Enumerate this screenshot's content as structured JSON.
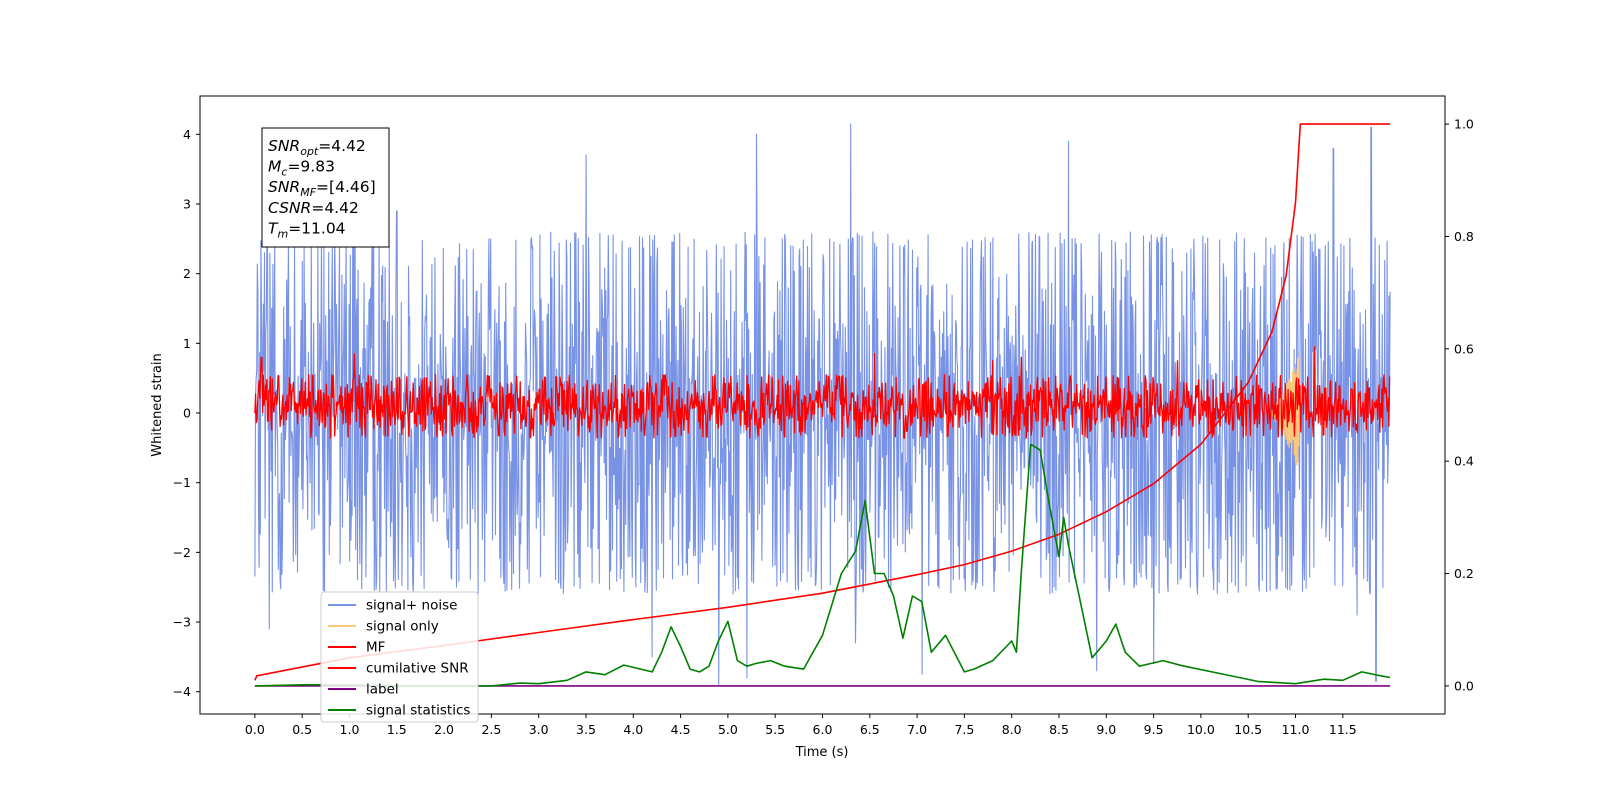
{
  "chart_data": {
    "type": "line",
    "xlabel": "Time (s)",
    "ylabel": "Whitened strain",
    "xlim": [
      -0.58,
      12.58
    ],
    "ylim": [
      -4.32,
      4.55
    ],
    "y2lim": [
      -0.05,
      1.05
    ],
    "xticks": [
      0.0,
      0.5,
      1.0,
      1.5,
      2.0,
      2.5,
      3.0,
      3.5,
      4.0,
      4.5,
      5.0,
      5.5,
      6.0,
      6.5,
      7.0,
      7.5,
      8.0,
      8.5,
      9.0,
      9.5,
      10.0,
      10.5,
      11.0,
      11.5
    ],
    "xtick_labels": [
      "0.0",
      "0.5",
      "1.0",
      "1.5",
      "2.0",
      "2.5",
      "3.0",
      "3.5",
      "4.0",
      "4.5",
      "5.0",
      "5.5",
      "6.0",
      "6.5",
      "7.0",
      "7.5",
      "8.0",
      "8.5",
      "9.0",
      "9.5",
      "10.0",
      "10.5",
      "11.0",
      "11.5"
    ],
    "yticks": [
      4,
      3,
      2,
      1,
      0,
      -1,
      -2,
      -3,
      -4
    ],
    "ytick_labels": [
      "4",
      "3",
      "2",
      "1",
      "0",
      "−1",
      "−2",
      "−3",
      "−4"
    ],
    "y2ticks": [
      1.0,
      0.8,
      0.6,
      0.4,
      0.2,
      0.0
    ],
    "y2tick_labels": [
      "1.0",
      "0.8",
      "0.6",
      "0.4",
      "0.2",
      "0.0"
    ],
    "grid": false,
    "legend_position": "lower-left",
    "info_box": {
      "lines": [
        {
          "main": "SNR",
          "sub": "opt",
          "rest": "=4.42"
        },
        {
          "main": "M",
          "sub": "c",
          "rest": "=9.83"
        },
        {
          "main": "SNR",
          "sub": "MF",
          "rest": "=[4.46]"
        },
        {
          "main": "CSNR",
          "sub": "",
          "rest": "=4.42"
        },
        {
          "main": "T",
          "sub": "m",
          "rest": "=11.04"
        }
      ]
    },
    "series": [
      {
        "name": "signal+ noise",
        "color": "#7893e6",
        "axis": "left",
        "style": "dense noise",
        "x_range": [
          0.0,
          12.0
        ],
        "typical_envelope": [
          -2.6,
          2.6
        ],
        "peaks": [
          [
            0.1,
            2.3
          ],
          [
            0.15,
            -3.1
          ],
          [
            1.5,
            2.9
          ],
          [
            3.5,
            3.7
          ],
          [
            4.2,
            -3.5
          ],
          [
            4.9,
            -3.9
          ],
          [
            5.3,
            4.0
          ],
          [
            5.2,
            -3.8
          ],
          [
            6.3,
            4.15
          ],
          [
            6.35,
            -3.3
          ],
          [
            7.05,
            -3.75
          ],
          [
            8.6,
            3.9
          ],
          [
            8.9,
            -3.7
          ],
          [
            9.5,
            -3.6
          ],
          [
            11.4,
            3.8
          ],
          [
            11.65,
            -2.9
          ],
          [
            11.8,
            4.1
          ],
          [
            11.85,
            -3.85
          ]
        ]
      },
      {
        "name": "signal only",
        "color": "#f9c77e",
        "axis": "left",
        "style": "chirp",
        "x_range": [
          10.7,
          11.04
        ],
        "peak_amplitude": 0.9
      },
      {
        "name": "MF",
        "color": "#ff0000",
        "axis": "left",
        "style": "noise",
        "x_range": [
          0.0,
          12.0
        ],
        "typical_envelope": [
          -0.36,
          0.55
        ],
        "peaks": [
          [
            0.07,
            0.8
          ],
          [
            1.05,
            0.85
          ],
          [
            6.55,
            0.85
          ],
          [
            7.8,
            0.75
          ],
          [
            8.1,
            0.8
          ],
          [
            9.75,
            0.75
          ],
          [
            11.2,
            0.95
          ]
        ]
      },
      {
        "name": "cumilative SNR",
        "color": "#ff0000",
        "axis": "right",
        "points": [
          [
            0.0,
            0.01
          ],
          [
            0.02,
            0.018
          ],
          [
            1.0,
            0.05
          ],
          [
            2.0,
            0.072
          ],
          [
            3.0,
            0.095
          ],
          [
            4.0,
            0.118
          ],
          [
            5.0,
            0.14
          ],
          [
            6.0,
            0.165
          ],
          [
            7.0,
            0.198
          ],
          [
            7.5,
            0.216
          ],
          [
            8.0,
            0.24
          ],
          [
            8.5,
            0.27
          ],
          [
            9.0,
            0.31
          ],
          [
            9.5,
            0.36
          ],
          [
            10.0,
            0.43
          ],
          [
            10.5,
            0.54
          ],
          [
            10.75,
            0.63
          ],
          [
            10.9,
            0.73
          ],
          [
            11.0,
            0.86
          ],
          [
            11.05,
            1.0
          ],
          [
            12.0,
            1.0
          ]
        ]
      },
      {
        "name": "label",
        "color": "#800080",
        "axis": "right",
        "points": [
          [
            0.0,
            0.0
          ],
          [
            12.0,
            0.0
          ]
        ]
      },
      {
        "name": "signal statistics",
        "color": "#008000",
        "axis": "right",
        "points": [
          [
            0.0,
            0.0
          ],
          [
            0.5,
            0.002
          ],
          [
            1.0,
            0.002
          ],
          [
            1.5,
            0.0
          ],
          [
            2.0,
            0.0
          ],
          [
            2.5,
            0.0
          ],
          [
            2.8,
            0.005
          ],
          [
            3.0,
            0.004
          ],
          [
            3.3,
            0.01
          ],
          [
            3.5,
            0.025
          ],
          [
            3.7,
            0.02
          ],
          [
            3.9,
            0.037
          ],
          [
            4.0,
            0.033
          ],
          [
            4.2,
            0.025
          ],
          [
            4.3,
            0.06
          ],
          [
            4.4,
            0.105
          ],
          [
            4.5,
            0.07
          ],
          [
            4.6,
            0.03
          ],
          [
            4.7,
            0.025
          ],
          [
            4.8,
            0.035
          ],
          [
            4.9,
            0.08
          ],
          [
            5.0,
            0.115
          ],
          [
            5.1,
            0.045
          ],
          [
            5.2,
            0.035
          ],
          [
            5.3,
            0.04
          ],
          [
            5.45,
            0.045
          ],
          [
            5.6,
            0.035
          ],
          [
            5.8,
            0.03
          ],
          [
            6.0,
            0.09
          ],
          [
            6.2,
            0.2
          ],
          [
            6.35,
            0.24
          ],
          [
            6.45,
            0.33
          ],
          [
            6.55,
            0.2
          ],
          [
            6.65,
            0.2
          ],
          [
            6.75,
            0.16
          ],
          [
            6.85,
            0.085
          ],
          [
            6.95,
            0.16
          ],
          [
            7.05,
            0.15
          ],
          [
            7.15,
            0.06
          ],
          [
            7.3,
            0.09
          ],
          [
            7.5,
            0.025
          ],
          [
            7.6,
            0.03
          ],
          [
            7.8,
            0.045
          ],
          [
            8.0,
            0.08
          ],
          [
            8.05,
            0.06
          ],
          [
            8.1,
            0.2
          ],
          [
            8.2,
            0.43
          ],
          [
            8.3,
            0.42
          ],
          [
            8.4,
            0.32
          ],
          [
            8.5,
            0.23
          ],
          [
            8.55,
            0.3
          ],
          [
            8.6,
            0.25
          ],
          [
            8.75,
            0.13
          ],
          [
            8.85,
            0.05
          ],
          [
            9.0,
            0.08
          ],
          [
            9.1,
            0.11
          ],
          [
            9.2,
            0.06
          ],
          [
            9.35,
            0.035
          ],
          [
            9.6,
            0.045
          ],
          [
            9.8,
            0.036
          ],
          [
            10.2,
            0.022
          ],
          [
            10.6,
            0.008
          ],
          [
            11.0,
            0.004
          ],
          [
            11.3,
            0.012
          ],
          [
            11.5,
            0.01
          ],
          [
            11.7,
            0.025
          ],
          [
            11.9,
            0.018
          ],
          [
            12.0,
            0.015
          ]
        ]
      }
    ]
  }
}
